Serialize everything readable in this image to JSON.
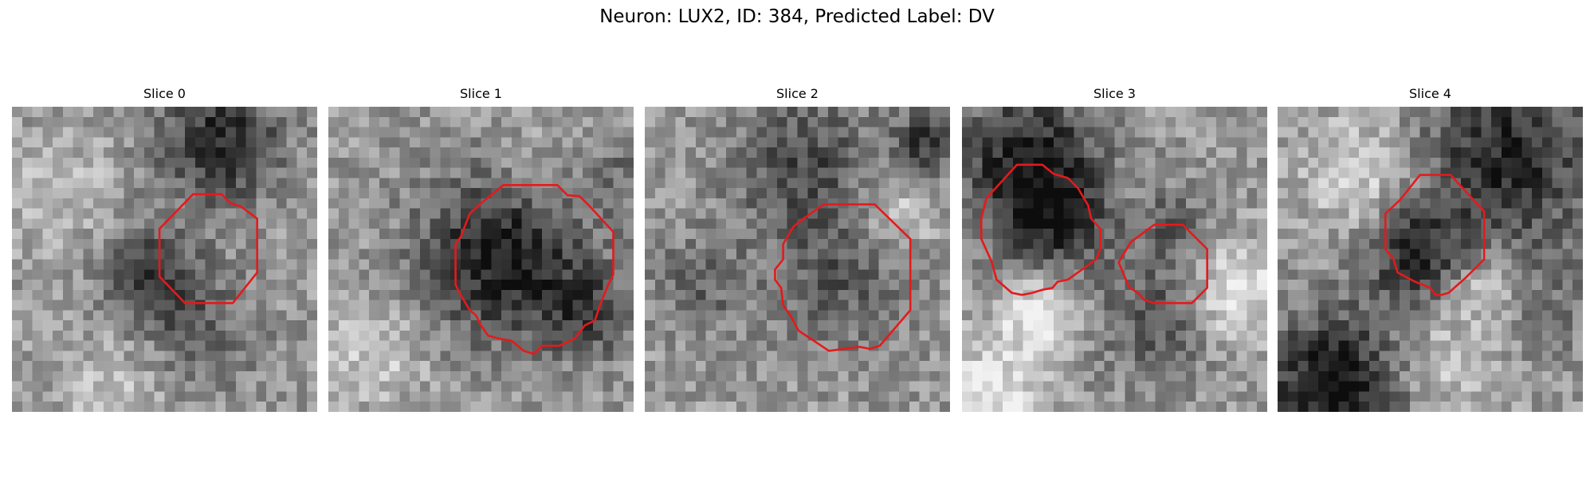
{
  "title": "Neuron: LUX2, ID: 384, Predicted Label: DV",
  "panels": [
    {
      "title": "Slice 0"
    },
    {
      "title": "Slice 1"
    },
    {
      "title": "Slice 2"
    },
    {
      "title": "Slice 3"
    },
    {
      "title": "Slice 4"
    }
  ]
}
